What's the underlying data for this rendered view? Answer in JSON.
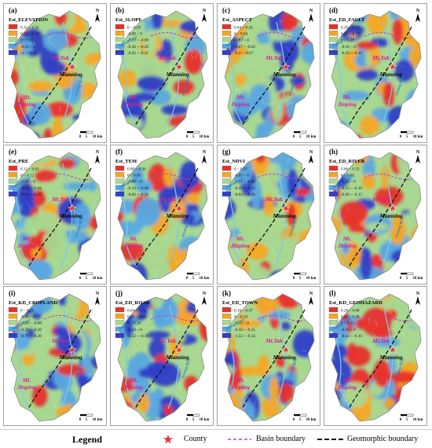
{
  "colors": {
    "class1": "#e8302a",
    "class2": "#f5a623",
    "class3": "#a8d890",
    "class4": "#5aa8e0",
    "class5": "#2f3fc7",
    "basin_boundary": "#c03cc8",
    "geomorphic_boundary": "#111111",
    "river": "#7cc8f0",
    "county": "#e53935"
  },
  "map_labels": {
    "river_west": "Yalong River",
    "river_east": "Anning River",
    "mt_yak": "Mt.Yak",
    "county": "Mianning",
    "mt_jinping_1": "Mt.",
    "mt_jinping_2": "Jinping",
    "scale_0": "0",
    "scale_5": "5",
    "scale_10": "10 km",
    "north": "N"
  },
  "panels": [
    {
      "letter": "(a)",
      "title": "Est_ELEVATION",
      "legend": [
        "0.32 ~ 1.31",
        "0.22 ~ 0.32",
        "0 ~ 0.21",
        "-0.12 ~ 0",
        "-1 ~ -0.12"
      ]
    },
    {
      "letter": "(b)",
      "title": "Est_SLOPE",
      "legend": [
        "0 ~ 0.29",
        "-0.08 ~ 0",
        "-0.19 ~ -0.08",
        "-0.30 ~ -0.20",
        "-0.56 ~ -0.31"
      ]
    },
    {
      "letter": "(c)",
      "title": "Est_ASPECT",
      "legend": [
        "0.04 ~ 0.20",
        "0 ~ 0.04",
        "-0.02 ~ 0",
        "-0.07 ~ -0.02",
        "-0.2 ~ -0.07"
      ]
    },
    {
      "letter": "(d)",
      "title": "Est_ED_FAULT",
      "legend": [
        "0.29 ~ 0.73",
        "0.20 ~ 0.29",
        "0 ~ 0.19",
        "-0.10 ~ 0",
        "-0.43 ~ -0.10"
      ]
    },
    {
      "letter": "(e)",
      "title": "Est_PRE",
      "legend": [
        "0.12 ~ 0.62",
        "0 ~ 0.12",
        "-0.09 ~ 0",
        "-0.25 ~ -0.09",
        "-0.61 ~ -0.25"
      ]
    },
    {
      "letter": "(f)",
      "title": "Est_TEM",
      "legend": [
        "0.00 ~ 0.36",
        "0 ~ 0.09",
        "-0.08 ~ 0",
        "-0.19 ~ -0.08",
        "-0.60 ~ -0.20"
      ]
    },
    {
      "letter": "(g)",
      "title": "Est_NDVI",
      "legend": [
        "0 ~ 0.37",
        "-0.05 ~ 0",
        "-0.11 ~ -0.05",
        "-0.19 ~ -0.12",
        "-0.64 ~ -0.20"
      ]
    },
    {
      "letter": "(h)",
      "title": "Est_ED_RIVER",
      "legend": [
        "0.06 ~ 0.35",
        "0 ~ 0.05",
        "-0.10 ~ 0",
        "-0.15 ~ -0.10",
        "-0.60 ~ -0.15"
      ]
    },
    {
      "letter": "(i)",
      "title": "Est_KD_CROPLAND",
      "legend": [
        "0 ~ 0.25",
        "-0.08 ~ 0",
        "-0.20 ~ -0.08",
        "-0.30 ~ -0.20",
        "-0.79 ~ -0.30"
      ]
    },
    {
      "letter": "(j)",
      "title": "Est_ED_ROAD",
      "legend": [
        "0.64 ~ 1.71",
        "0.20 ~ 0.64",
        "0 ~ 0.20",
        "-0.10 ~ 0",
        "-0.52 ~ -0.10"
      ]
    },
    {
      "letter": "(k)",
      "title": "Est_ED_TOWN",
      "legend": [
        "0.10 ~ 0.47",
        "0 ~ 0.10",
        "-0.15 ~ 0",
        "-0.32 ~ -0.15",
        "-1.52 ~ -0.32"
      ]
    },
    {
      "letter": "(l)",
      "title": "Est_KD_GEOHAZARD",
      "legend": [
        "0.28 ~ 0.68",
        "0.13 ~ 0.28",
        "0 ~ 0.13",
        "-0.10 ~ 0",
        "-0.42 ~ -0.10"
      ]
    }
  ],
  "legend": {
    "title": "Legend",
    "county": "County",
    "basin": "Basin boundary",
    "geomorphic": "Geomorphic boundary"
  }
}
